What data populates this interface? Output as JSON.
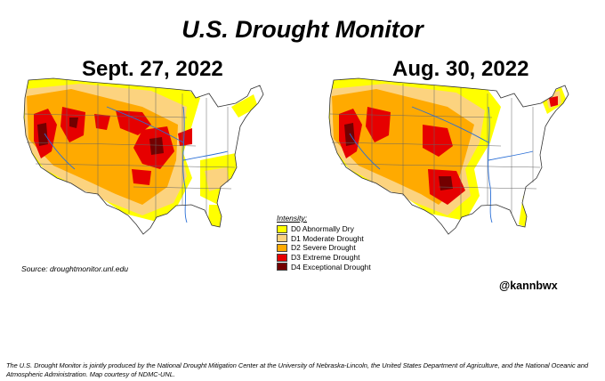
{
  "title": "U.S. Drought Monitor",
  "maps": [
    {
      "date": "Sept. 27, 2022"
    },
    {
      "date": "Aug. 30, 2022"
    }
  ],
  "legend": {
    "title": "Intensity:",
    "items": [
      {
        "label": "D0 Abnormally Dry",
        "color": "#ffff00"
      },
      {
        "label": "D1 Moderate Drought",
        "color": "#fcd37f"
      },
      {
        "label": "D2 Severe Drought",
        "color": "#ffaa00"
      },
      {
        "label": "D3 Extreme Drought",
        "color": "#e60000"
      },
      {
        "label": "D4 Exceptional Drought",
        "color": "#730000"
      }
    ]
  },
  "source": "Source: droughtmonitor.unl.edu",
  "handle": "@kannbwx",
  "footer": "The U.S. Drought Monitor is jointly produced by the National Drought Mitigation Center at the University of Nebraska-Lincoln, the United States Department of Agriculture, and the National Oceanic and Atmospheric Administration. Map courtesy of NDMC-UNL."
}
